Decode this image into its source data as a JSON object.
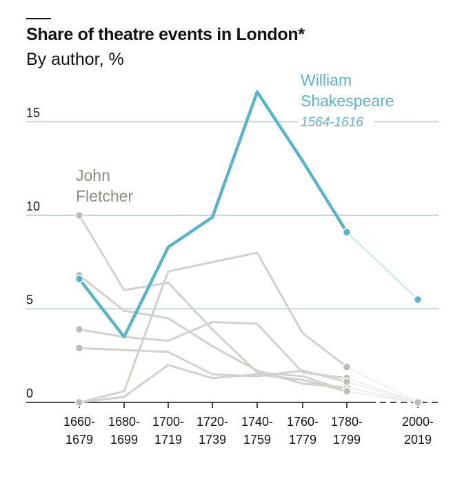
{
  "title": "Share of theatre events in London*",
  "subtitle": "By author, %",
  "chart_data": {
    "type": "line",
    "title": "Share of theatre events in London*",
    "subtitle": "By author, %",
    "xlabel": "",
    "ylabel": "",
    "ylim": [
      0,
      17
    ],
    "yticks": [
      0,
      5,
      10,
      15
    ],
    "grid": true,
    "categories": [
      "1660-1679",
      "1680-1699",
      "1700-1719",
      "1720-1739",
      "1740-1759",
      "1760-1779",
      "1780-1799",
      "2000-2019"
    ],
    "category_labels": [
      [
        "1660-",
        "1679"
      ],
      [
        "1680-",
        "1699"
      ],
      [
        "1700-",
        "1719"
      ],
      [
        "1720-",
        "1739"
      ],
      [
        "1740-",
        "1759"
      ],
      [
        "1760-",
        "1779"
      ],
      [
        "1780-",
        "1799"
      ],
      [
        "2000-",
        "2019"
      ]
    ],
    "highlight": {
      "name": "William Shakespeare",
      "name_lines": [
        "William",
        "Shakespeare"
      ],
      "dates": "1564-1616",
      "color": "#5ab4c8",
      "light_color": "#b9e2ea",
      "values": [
        6.6,
        3.5,
        8.3,
        9.9,
        16.6,
        12.9,
        9.1,
        5.5
      ]
    },
    "annotated_series": {
      "name": "John Fletcher",
      "name_lines": [
        "John",
        "Fletcher"
      ],
      "color": "#8c8c82"
    },
    "others_color": "#d1d1cd",
    "series": [
      {
        "name": "John Fletcher",
        "values": [
          10.0,
          6.0,
          6.4,
          3.9,
          1.6,
          1.4,
          0.6,
          0.0
        ]
      },
      {
        "values": [
          6.8,
          4.9,
          4.5,
          3.0,
          1.7,
          1.0,
          0.8,
          0.0
        ]
      },
      {
        "values": [
          0.0,
          0.6,
          7.0,
          7.5,
          8.0,
          3.7,
          1.9,
          0.0
        ]
      },
      {
        "values": [
          3.9,
          3.5,
          3.3,
          4.3,
          4.2,
          1.6,
          1.3,
          0.0
        ]
      },
      {
        "values": [
          2.9,
          2.8,
          2.7,
          1.5,
          1.4,
          1.7,
          1.1,
          0.0
        ]
      },
      {
        "values": [
          0.0,
          0.3,
          2.0,
          1.3,
          1.5,
          1.2,
          0.6,
          0.0
        ]
      }
    ]
  }
}
